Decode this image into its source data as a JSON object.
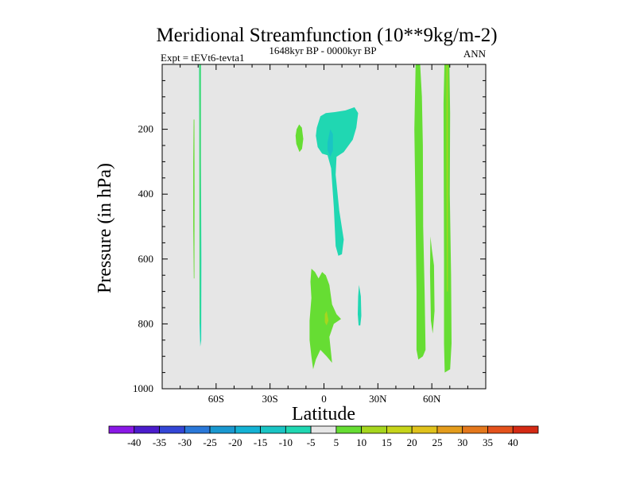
{
  "chart_data": {
    "type": "heatmap",
    "title": "Meridional Streamfunction (10**9kg/m-2)",
    "left_string": "Expt = tEVt6-tevta1",
    "center_string": "1648kyr BP - 0000kyr BP",
    "right_string": "ANN",
    "xlabel": "Latitude",
    "ylabel": "Pressure (in hPa)",
    "xlim": [
      -90,
      90
    ],
    "ylim": [
      1000,
      0
    ],
    "x_ticks": [
      {
        "value": -60,
        "label": "60S"
      },
      {
        "value": -30,
        "label": "30S"
      },
      {
        "value": 0,
        "label": "0"
      },
      {
        "value": 30,
        "label": "30N"
      },
      {
        "value": 60,
        "label": "60N"
      }
    ],
    "y_ticks": [
      {
        "value": 200,
        "label": "200"
      },
      {
        "value": 400,
        "label": "400"
      },
      {
        "value": 600,
        "label": "600"
      },
      {
        "value": 800,
        "label": "800"
      },
      {
        "value": 1000,
        "label": "1000"
      }
    ],
    "background_color": "#e6e6e6",
    "colorbar": {
      "labels": [
        "-40",
        "-35",
        "-30",
        "-25",
        "-20",
        "-15",
        "-10",
        "-5",
        "5",
        "10",
        "15",
        "20",
        "25",
        "30",
        "35",
        "40"
      ],
      "colors": [
        "#8a18e6",
        "#4b1ccc",
        "#3446d6",
        "#2a78d9",
        "#1a98d0",
        "#14b2d4",
        "#1ac4c4",
        "#20d7b2",
        "#e6e6e6",
        "#66dd33",
        "#a6d61e",
        "#c6d41a",
        "#e0c21c",
        "#e49c1c",
        "#e4781c",
        "#e4521c",
        "#d42a14"
      ]
    },
    "contours": [
      {
        "name": "sh-polar-strip-left",
        "level": 5,
        "color": "#66dd33",
        "points": [
          [
            -72.5,
            170
          ],
          [
            -72.1,
            170
          ],
          [
            -72,
            400
          ],
          [
            -72.1,
            660
          ],
          [
            -72.4,
            660
          ],
          [
            -72.7,
            500
          ],
          [
            -72.7,
            300
          ]
        ]
      },
      {
        "name": "sh-polar-strip-main",
        "level": -5,
        "color": "#20d7b2",
        "points": [
          [
            -69.5,
            0
          ],
          [
            -68.4,
            0
          ],
          [
            -68.4,
            300
          ],
          [
            -68.2,
            600
          ],
          [
            -68.3,
            850
          ],
          [
            -68.8,
            870
          ],
          [
            -69.2,
            800
          ],
          [
            -69.3,
            500
          ],
          [
            -69.4,
            200
          ]
        ]
      },
      {
        "name": "sh-polar-strip-inner",
        "level": 5,
        "color": "#66dd33",
        "points": [
          [
            -69.1,
            0
          ],
          [
            -68.7,
            0
          ],
          [
            -68.7,
            300
          ],
          [
            -68.8,
            800
          ],
          [
            -69.0,
            800
          ],
          [
            -69.1,
            300
          ]
        ]
      },
      {
        "name": "subtropical-blob",
        "level": 5,
        "color": "#66dd33",
        "points": [
          [
            -15.2,
            200
          ],
          [
            -13.8,
            185
          ],
          [
            -12.3,
            195
          ],
          [
            -11.5,
            230
          ],
          [
            -12.2,
            260
          ],
          [
            -13.6,
            270
          ],
          [
            -15.4,
            245
          ],
          [
            -15.8,
            220
          ]
        ]
      },
      {
        "name": "equatorial-upper-cell",
        "level": -5,
        "color": "#20d7b2",
        "points": [
          [
            -4,
            195
          ],
          [
            -2,
            160
          ],
          [
            1,
            150
          ],
          [
            6,
            147
          ],
          [
            12,
            142
          ],
          [
            17,
            132
          ],
          [
            19,
            150
          ],
          [
            18,
            195
          ],
          [
            16,
            232
          ],
          [
            11,
            270
          ],
          [
            7,
            285
          ],
          [
            6.5,
            340
          ],
          [
            8.5,
            450
          ],
          [
            11,
            540
          ],
          [
            10,
            585
          ],
          [
            8,
            590
          ],
          [
            6.5,
            560
          ],
          [
            5.5,
            440
          ],
          [
            4,
            320
          ],
          [
            2,
            280
          ],
          [
            -1,
            275
          ],
          [
            -3.5,
            255
          ],
          [
            -4.5,
            220
          ]
        ]
      },
      {
        "name": "equatorial-upper-core",
        "level": -10,
        "color": "#1ac4c4",
        "points": [
          [
            2,
            240
          ],
          [
            3.5,
            200
          ],
          [
            5,
            215
          ],
          [
            5,
            265
          ],
          [
            3.5,
            285
          ],
          [
            2,
            265
          ]
        ]
      },
      {
        "name": "equatorial-lower-cell",
        "level": 5,
        "color": "#66dd33",
        "points": [
          [
            -7,
            630
          ],
          [
            -5,
            640
          ],
          [
            -3,
            660
          ],
          [
            -1,
            640
          ],
          [
            1,
            650
          ],
          [
            3,
            680
          ],
          [
            4.5,
            740
          ],
          [
            7,
            770
          ],
          [
            9.5,
            785
          ],
          [
            5.5,
            800
          ],
          [
            3,
            840
          ],
          [
            4.5,
            920
          ],
          [
            1.5,
            900
          ],
          [
            -2,
            880
          ],
          [
            -4.5,
            910
          ],
          [
            -6,
            940
          ],
          [
            -7,
            900
          ],
          [
            -8,
            850
          ],
          [
            -8,
            790
          ],
          [
            -7,
            720
          ],
          [
            -7.5,
            670
          ]
        ]
      },
      {
        "name": "equatorial-lower-core",
        "level": 10,
        "color": "#a6d61e",
        "points": [
          [
            0.5,
            770
          ],
          [
            1.5,
            760
          ],
          [
            2.5,
            790
          ],
          [
            1.5,
            805
          ],
          [
            0.5,
            795
          ]
        ]
      },
      {
        "name": "nh-subtropical-blob",
        "level": -5,
        "color": "#20d7b2",
        "points": [
          [
            19,
            715
          ],
          [
            19.5,
            680
          ],
          [
            20.5,
            715
          ],
          [
            20.8,
            775
          ],
          [
            20.2,
            805
          ],
          [
            19.3,
            805
          ],
          [
            18.8,
            770
          ]
        ]
      },
      {
        "name": "nh-midlat-strip-main",
        "level": 5,
        "color": "#66dd33",
        "points": [
          [
            51,
            0
          ],
          [
            53.5,
            0
          ],
          [
            54.5,
            100
          ],
          [
            55,
            250
          ],
          [
            55.2,
            500
          ],
          [
            56,
            700
          ],
          [
            56.5,
            880
          ],
          [
            55,
            900
          ],
          [
            52.5,
            910
          ],
          [
            51.5,
            880
          ],
          [
            51.5,
            700
          ],
          [
            50.8,
            400
          ],
          [
            50.3,
            200
          ]
        ]
      },
      {
        "name": "nh-midlat-strip-second",
        "level": 5,
        "color": "#66dd33",
        "points": [
          [
            59.2,
            530
          ],
          [
            60,
            570
          ],
          [
            61.2,
            620
          ],
          [
            61.5,
            760
          ],
          [
            60.5,
            830
          ],
          [
            59.5,
            790
          ],
          [
            59,
            640
          ]
        ]
      },
      {
        "name": "nh-polar-strip",
        "level": 5,
        "color": "#66dd33",
        "points": [
          [
            67,
            0
          ],
          [
            69.8,
            0
          ],
          [
            70.2,
            150
          ],
          [
            70,
            400
          ],
          [
            70.7,
            650
          ],
          [
            71,
            860
          ],
          [
            70.2,
            940
          ],
          [
            67.2,
            950
          ],
          [
            66.8,
            860
          ],
          [
            66.8,
            600
          ],
          [
            66.6,
            300
          ],
          [
            66.5,
            120
          ]
        ]
      },
      {
        "name": "nh-polar-strip-core",
        "level": 10,
        "color": "#a6d61e",
        "points": [
          [
            68.2,
            0
          ],
          [
            68.8,
            0
          ],
          [
            69,
            300
          ],
          [
            68.9,
            700
          ],
          [
            68.4,
            700
          ],
          [
            68.2,
            300
          ]
        ]
      }
    ]
  }
}
